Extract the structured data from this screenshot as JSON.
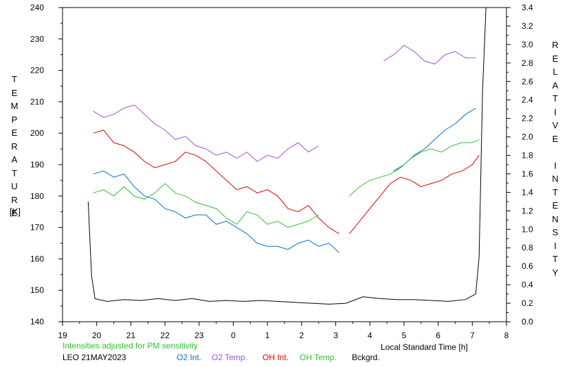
{
  "chart_data": {
    "type": "line",
    "left_axis_label_letters": [
      "T",
      "E",
      "M",
      "P",
      "E",
      "R",
      "A",
      "T",
      "U",
      "R",
      "E"
    ],
    "left_axis_unit": "[K]",
    "right_axis_label_letters": [
      "R",
      "E",
      "L",
      "A",
      "T",
      "I",
      "V",
      "E",
      "",
      "I",
      "N",
      "T",
      "E",
      "N",
      "S",
      "I",
      "T",
      "Y"
    ],
    "xlabel": "Local Standard Time [h]",
    "x_ticks": [
      19,
      20,
      21,
      22,
      23,
      0,
      1,
      2,
      3,
      4,
      5,
      6,
      7,
      8
    ],
    "y_left_ticks": [
      140,
      150,
      160,
      170,
      180,
      190,
      200,
      210,
      220,
      230,
      240
    ],
    "y_right_ticks": [
      "0.0",
      "0.2",
      "0.4",
      "0.6",
      "0.8",
      "1.0",
      "1.2",
      "1.4",
      "1.6",
      "1.8",
      "2.0",
      "2.2",
      "2.4",
      "2.6",
      "2.8",
      "3.0",
      "3.2",
      "3.4"
    ],
    "ylim_left": [
      140,
      240
    ],
    "ylim_right": [
      0.0,
      3.4
    ],
    "xlim": [
      19,
      32
    ],
    "note": "Intensities adjusted for PM sensitivity",
    "station_date": "LEO 21MAY2023",
    "series": [
      {
        "name": "O2 Int.",
        "color": "#0070d0",
        "axis": "left",
        "x": [
          19.9,
          20.2,
          20.5,
          20.8,
          21.1,
          21.4,
          21.7,
          22.0,
          22.3,
          22.6,
          22.9,
          23.2,
          23.5,
          23.8,
          24.1,
          24.4,
          24.7,
          25.0,
          25.3,
          25.6,
          25.9,
          26.2,
          26.5,
          26.8,
          27.1
        ],
        "y": [
          187,
          188,
          186,
          187,
          183,
          180,
          179,
          176,
          175,
          173,
          174,
          174,
          171,
          172,
          170,
          168,
          165,
          164,
          164,
          163,
          165,
          166,
          164,
          165,
          162
        ]
      },
      {
        "name": "O2 Int.",
        "color": "#0070d0",
        "axis": "left",
        "x": [
          28.7,
          29.0,
          29.3,
          29.6,
          29.9,
          30.2,
          30.5,
          30.8,
          31.1
        ],
        "y": [
          188,
          190,
          193,
          195,
          198,
          201,
          203,
          206,
          208
        ]
      },
      {
        "name": "O2 Temp.",
        "color": "#a050e0",
        "axis": "left",
        "x": [
          19.9,
          20.2,
          20.5,
          20.8,
          21.1,
          21.4,
          21.7,
          22.0,
          22.3,
          22.6,
          22.9,
          23.2,
          23.5,
          23.8,
          24.1,
          24.4,
          24.7,
          25.0,
          25.3,
          25.6,
          25.9,
          26.2,
          26.5
        ],
        "y": [
          207,
          205,
          206,
          208,
          209,
          206,
          203,
          201,
          198,
          199,
          196,
          195,
          193,
          194,
          192,
          194,
          191,
          193,
          192,
          195,
          197,
          194,
          196
        ]
      },
      {
        "name": "O2 Temp.",
        "color": "#a050e0",
        "axis": "left",
        "x": [
          28.4,
          28.7,
          29.0,
          29.3,
          29.6,
          29.9,
          30.2,
          30.5,
          30.8,
          31.1
        ],
        "y": [
          223,
          225,
          228,
          226,
          223,
          222,
          225,
          226,
          224,
          224
        ]
      },
      {
        "name": "OH Int.",
        "color": "#e00000",
        "axis": "left",
        "x": [
          19.9,
          20.2,
          20.5,
          20.8,
          21.1,
          21.4,
          21.7,
          22.0,
          22.3,
          22.6,
          22.9,
          23.2,
          23.5,
          23.8,
          24.1,
          24.4,
          24.7,
          25.0,
          25.3,
          25.6,
          25.9,
          26.2,
          26.5,
          26.8,
          27.1
        ],
        "y": [
          200,
          201,
          197,
          196,
          194,
          191,
          189,
          190,
          191,
          194,
          193,
          191,
          188,
          185,
          182,
          183,
          181,
          182,
          180,
          176,
          175,
          177,
          173,
          170,
          168
        ]
      },
      {
        "name": "OH Int.",
        "color": "#e00000",
        "axis": "left",
        "x": [
          27.4,
          27.7,
          28.0,
          28.3,
          28.6,
          28.9,
          29.2,
          29.5,
          29.8,
          30.1,
          30.4,
          30.7,
          31.0,
          31.2
        ],
        "y": [
          168,
          172,
          176,
          180,
          184,
          186,
          185,
          183,
          184,
          185,
          187,
          188,
          190,
          193
        ]
      },
      {
        "name": "OH Temp.",
        "color": "#30c030",
        "axis": "left",
        "x": [
          19.9,
          20.2,
          20.5,
          20.8,
          21.1,
          21.4,
          21.7,
          22.0,
          22.3,
          22.6,
          22.9,
          23.2,
          23.5,
          23.8,
          24.1,
          24.4,
          24.7,
          25.0,
          25.3,
          25.6,
          25.9,
          26.2,
          26.5
        ],
        "y": [
          181,
          182,
          180,
          183,
          180,
          179,
          181,
          184,
          181,
          180,
          178,
          177,
          176,
          173,
          171,
          175,
          174,
          171,
          172,
          170,
          171,
          172,
          174
        ]
      },
      {
        "name": "OH Temp.",
        "color": "#30c030",
        "axis": "left",
        "x": [
          27.4,
          27.7,
          28.0,
          28.3,
          28.6,
          28.9,
          29.2,
          29.5,
          29.8,
          30.1,
          30.4,
          30.7,
          31.0,
          31.2
        ],
        "y": [
          180,
          183,
          185,
          186,
          187,
          189,
          192,
          194,
          195,
          194,
          196,
          197,
          197,
          198
        ]
      },
      {
        "name": "Bckgrd.",
        "color": "#000000",
        "axis": "right",
        "x": [
          19.75,
          19.85,
          19.95,
          20.3,
          20.8,
          21.3,
          21.8,
          22.3,
          22.8,
          23.3,
          23.8,
          24.3,
          24.8,
          25.3,
          25.8,
          26.3,
          26.8,
          27.3,
          27.8,
          28.3,
          28.8,
          29.3,
          29.8,
          30.3,
          30.8,
          31.1,
          31.2,
          31.3,
          31.4
        ],
        "y": [
          1.3,
          0.5,
          0.25,
          0.22,
          0.24,
          0.23,
          0.25,
          0.23,
          0.25,
          0.22,
          0.23,
          0.22,
          0.23,
          0.22,
          0.21,
          0.2,
          0.19,
          0.2,
          0.27,
          0.25,
          0.24,
          0.24,
          0.23,
          0.22,
          0.24,
          0.3,
          0.7,
          2.5,
          3.4
        ]
      }
    ]
  }
}
